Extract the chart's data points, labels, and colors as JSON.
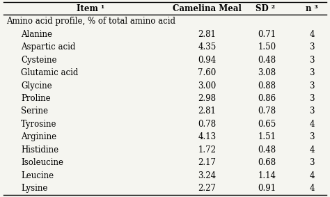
{
  "header": [
    "Item ¹",
    "Camelina Meal",
    "SD ²",
    "n ³"
  ],
  "section_label": "Amino acid profile, % of total amino acid",
  "rows": [
    [
      "Alanine",
      "2.81",
      "0.71",
      "4"
    ],
    [
      "Aspartic acid",
      "4.35",
      "1.50",
      "3"
    ],
    [
      "Cysteine",
      "0.94",
      "0.48",
      "3"
    ],
    [
      "Glutamic acid",
      "7.60",
      "3.08",
      "3"
    ],
    [
      "Glycine",
      "3.00",
      "0.88",
      "3"
    ],
    [
      "Proline",
      "2.98",
      "0.86",
      "3"
    ],
    [
      "Serine",
      "2.81",
      "0.78",
      "3"
    ],
    [
      "Tyrosine",
      "0.78",
      "0.65",
      "4"
    ],
    [
      "Arginine",
      "4.13",
      "1.51",
      "3"
    ],
    [
      "Histidine",
      "1.72",
      "0.48",
      "4"
    ],
    [
      "Isoleucine",
      "2.17",
      "0.68",
      "3"
    ],
    [
      "Leucine",
      "3.24",
      "1.14",
      "4"
    ],
    [
      "Lysine",
      "2.27",
      "0.91",
      "4"
    ]
  ],
  "bg_color": "#f5f5f0",
  "header_fontsize": 8.5,
  "data_fontsize": 8.5,
  "section_fontsize": 8.5
}
